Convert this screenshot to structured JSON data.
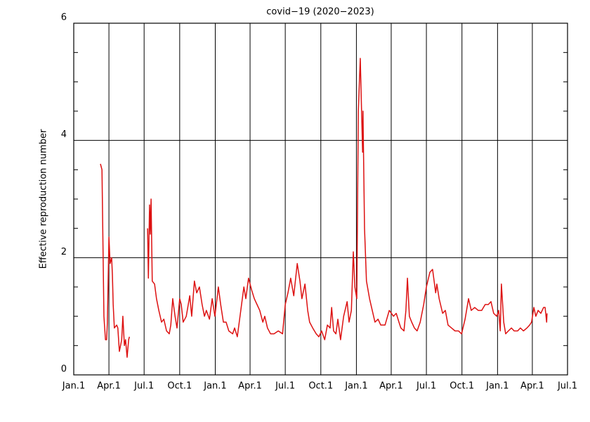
{
  "chart_data": {
    "type": "line",
    "title": "covid−19 (2020−2023)",
    "y_label": "Effective reproduction number",
    "xlim": [
      0,
      1277
    ],
    "ylim": [
      0,
      6
    ],
    "xticks": [
      {
        "value": 0,
        "label": "Jan.1"
      },
      {
        "value": 91,
        "label": "Apr.1"
      },
      {
        "value": 182,
        "label": "Jul.1"
      },
      {
        "value": 274,
        "label": "Oct.1"
      },
      {
        "value": 366,
        "label": "Jan.1"
      },
      {
        "value": 456,
        "label": "Apr.1"
      },
      {
        "value": 547,
        "label": "Jul.1"
      },
      {
        "value": 639,
        "label": "Oct.1"
      },
      {
        "value": 731,
        "label": "Jan.1"
      },
      {
        "value": 821,
        "label": "Apr.1"
      },
      {
        "value": 912,
        "label": "Jul.1"
      },
      {
        "value": 1004,
        "label": "Oct.1"
      },
      {
        "value": 1096,
        "label": "Jan.1"
      },
      {
        "value": 1186,
        "label": "Apr.1"
      },
      {
        "value": 1277,
        "label": "Jul.1"
      }
    ],
    "yticks": [
      0,
      2,
      4,
      6
    ],
    "yminorticks": [
      0.5,
      1,
      1.5,
      2.5,
      3,
      3.5,
      4.5,
      5,
      5.5
    ],
    "grid": true,
    "series": [
      {
        "color": "#dd1111",
        "x": [
          69,
          73,
          78,
          82,
          85,
          87,
          91,
          94,
          98,
          100,
          102,
          105,
          111,
          114,
          118,
          124,
          127,
          131,
          134,
          138,
          142,
          144,
          165,
          191,
          193,
          196,
          198,
          200,
          203,
          209,
          214,
          220,
          227,
          233,
          240,
          247,
          251,
          256,
          262,
          267,
          274,
          278,
          283,
          291,
          300,
          305,
          312,
          318,
          325,
          332,
          338,
          343,
          351,
          358,
          365,
          374,
          380,
          387,
          394,
          401,
          411,
          416,
          423,
          429,
          434,
          440,
          445,
          452,
          460,
          467,
          474,
          481,
          489,
          494,
          501,
          509,
          518,
          529,
          540,
          547,
          554,
          561,
          569,
          578,
          585,
          590,
          598,
          605,
          610,
          618,
          627,
          634,
          641,
          649,
          656,
          663,
          667,
          672,
          678,
          683,
          690,
          698,
          707,
          712,
          718,
          723,
          727,
          732,
          736,
          741,
          747,
          748,
          752,
          757,
          765,
          772,
          779,
          787,
          794,
          805,
          816,
          827,
          834,
          841,
          846,
          854,
          859,
          863,
          868,
          874,
          881,
          888,
          896,
          905,
          912,
          921,
          928,
          936,
          939,
          945,
          954,
          961,
          968,
          977,
          986,
          995,
          1003,
          1012,
          1021,
          1028,
          1037,
          1046,
          1055,
          1064,
          1072,
          1079,
          1086,
          1094,
          1099,
          1103,
          1106,
          1112,
          1117,
          1124,
          1132,
          1139,
          1148,
          1155,
          1163,
          1172,
          1179,
          1184,
          1190,
          1195,
          1201,
          1208,
          1215,
          1219,
          1223,
          1224
        ],
        "values": [
          3.6,
          3.5,
          1.0,
          0.6,
          0.6,
          0.9,
          2.35,
          1.9,
          2.0,
          1.7,
          1.2,
          0.8,
          0.85,
          0.8,
          0.4,
          0.6,
          1.0,
          0.5,
          0.6,
          0.3,
          0.6,
          0.65,
          null,
          2.5,
          1.65,
          2.9,
          2.4,
          3.0,
          1.6,
          1.55,
          1.3,
          1.1,
          0.9,
          0.95,
          0.75,
          0.7,
          0.85,
          1.3,
          1.0,
          0.8,
          1.3,
          1.2,
          0.9,
          1.0,
          1.35,
          1.0,
          1.6,
          1.4,
          1.5,
          1.2,
          1.0,
          1.1,
          0.95,
          1.3,
          1.0,
          1.5,
          1.2,
          0.9,
          0.9,
          0.75,
          0.7,
          0.8,
          0.65,
          0.95,
          1.2,
          1.5,
          1.3,
          1.65,
          1.45,
          1.3,
          1.2,
          1.1,
          0.9,
          1.0,
          0.8,
          0.7,
          0.7,
          0.75,
          0.7,
          1.2,
          1.4,
          1.65,
          1.35,
          1.9,
          1.6,
          1.3,
          1.55,
          1.1,
          0.9,
          0.8,
          0.7,
          0.65,
          0.75,
          0.6,
          0.85,
          0.8,
          1.15,
          0.75,
          0.7,
          0.95,
          0.6,
          1.0,
          1.25,
          0.9,
          1.1,
          2.1,
          1.5,
          1.3,
          4.5,
          5.4,
          3.8,
          4.5,
          2.5,
          1.6,
          1.3,
          1.1,
          0.9,
          0.95,
          0.85,
          0.85,
          1.1,
          1.0,
          1.05,
          0.9,
          0.8,
          0.75,
          1.1,
          1.65,
          1.0,
          0.9,
          0.8,
          0.75,
          0.9,
          1.2,
          1.5,
          1.75,
          1.8,
          1.4,
          1.55,
          1.3,
          1.05,
          1.1,
          0.85,
          0.8,
          0.75,
          0.75,
          0.7,
          0.95,
          1.3,
          1.1,
          1.15,
          1.1,
          1.1,
          1.2,
          1.2,
          1.25,
          1.05,
          1.0,
          1.1,
          0.75,
          1.55,
          0.9,
          0.7,
          0.75,
          0.8,
          0.75,
          0.75,
          0.8,
          0.75,
          0.8,
          0.85,
          0.9,
          1.15,
          1.0,
          1.1,
          1.05,
          1.15,
          1.15,
          0.9,
          1.05
        ]
      }
    ]
  }
}
